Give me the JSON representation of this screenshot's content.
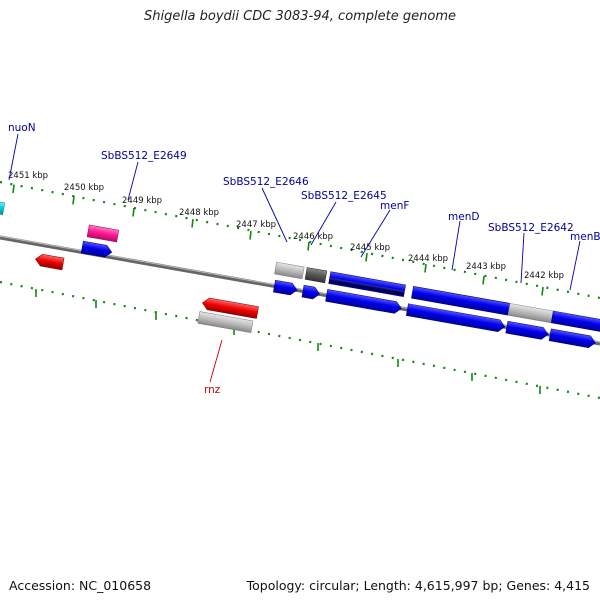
{
  "title": "Shigella boydii CDC 3083-94, complete genome",
  "footer": {
    "accession": "Accession: NC_010658",
    "summary": "Topology: circular; Length: 4,615,997 bp; Genes: 4,415"
  },
  "kbp_labels": [
    "2451 kbp",
    "2450 kbp",
    "2449 kbp",
    "2448 kbp",
    "2447 kbp",
    "2446 kbp",
    "2445 kbp",
    "2444 kbp",
    "2443 kbp",
    "2442 kbp"
  ],
  "gene_labels": {
    "nuoN": "nuoN",
    "e2649": "SbBS512_E2649",
    "e2646": "SbBS512_E2646",
    "e2645": "SbBS512_E2645",
    "menF": "menF",
    "menD": "menD",
    "e2642": "SbBS512_E2642",
    "menB": "menB",
    "rnz": "rnz"
  },
  "colors": {
    "cds": "#0000ee",
    "cds_light": "#00c8d8",
    "pseudo": "#ff1493",
    "rna": "#ee0000",
    "misc": "#bbbbbb",
    "dark_misc": "#555555",
    "backbone": "#777777",
    "tick": "#118811",
    "label_blue": "#000099",
    "label_red": "#cc0000"
  }
}
